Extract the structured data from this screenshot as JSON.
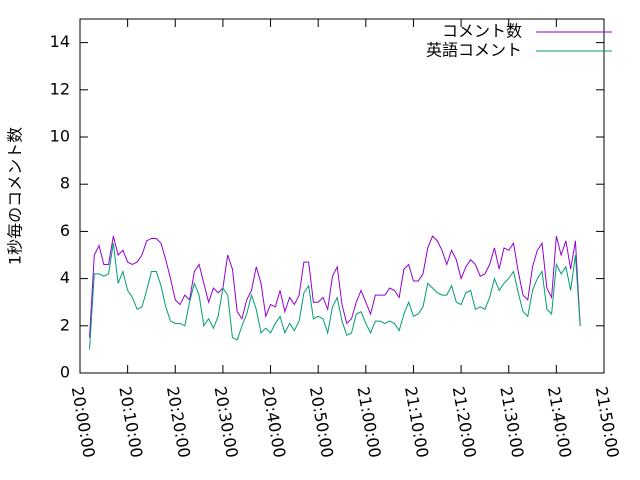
{
  "chart_data": {
    "type": "line",
    "ylabel": "1秒毎のコメント数",
    "x": [
      "20:02:00",
      "20:03:00",
      "20:04:00",
      "20:05:00",
      "20:06:00",
      "20:07:00",
      "20:08:00",
      "20:09:00",
      "20:10:00",
      "20:11:00",
      "20:12:00",
      "20:13:00",
      "20:14:00",
      "20:15:00",
      "20:16:00",
      "20:17:00",
      "20:18:00",
      "20:19:00",
      "20:20:00",
      "20:21:00",
      "20:22:00",
      "20:23:00",
      "20:24:00",
      "20:25:00",
      "20:26:00",
      "20:27:00",
      "20:28:00",
      "20:29:00",
      "20:30:00",
      "20:31:00",
      "20:32:00",
      "20:33:00",
      "20:34:00",
      "20:35:00",
      "20:36:00",
      "20:37:00",
      "20:38:00",
      "20:39:00",
      "20:40:00",
      "20:41:00",
      "20:42:00",
      "20:43:00",
      "20:44:00",
      "20:45:00",
      "20:46:00",
      "20:47:00",
      "20:48:00",
      "20:49:00",
      "20:50:00",
      "20:51:00",
      "20:52:00",
      "20:53:00",
      "20:54:00",
      "20:55:00",
      "20:56:00",
      "20:57:00",
      "20:58:00",
      "20:59:00",
      "21:00:00",
      "21:01:00",
      "21:02:00",
      "21:03:00",
      "21:04:00",
      "21:05:00",
      "21:06:00",
      "21:07:00",
      "21:08:00",
      "21:09:00",
      "21:10:00",
      "21:11:00",
      "21:12:00",
      "21:13:00",
      "21:14:00",
      "21:15:00",
      "21:16:00",
      "21:17:00",
      "21:18:00",
      "21:19:00",
      "21:20:00",
      "21:21:00",
      "21:22:00",
      "21:23:00",
      "21:24:00",
      "21:25:00",
      "21:26:00",
      "21:27:00",
      "21:28:00",
      "21:29:00",
      "21:30:00",
      "21:31:00",
      "21:32:00",
      "21:33:00",
      "21:34:00",
      "21:35:00",
      "21:36:00",
      "21:37:00",
      "21:38:00",
      "21:39:00",
      "21:40:00",
      "21:41:00",
      "21:42:00",
      "21:43:00",
      "21:44:00",
      "21:45:00"
    ],
    "series": [
      {
        "name": "コメント数",
        "color": "#9400d3",
        "values": [
          1.5,
          5.0,
          5.4,
          4.6,
          4.6,
          5.8,
          5.0,
          5.2,
          4.7,
          4.6,
          4.7,
          5.0,
          5.6,
          5.7,
          5.7,
          5.5,
          4.8,
          4.0,
          3.1,
          2.9,
          3.3,
          3.1,
          4.3,
          4.6,
          3.8,
          3.0,
          3.6,
          3.4,
          3.6,
          5.0,
          4.4,
          2.6,
          2.3,
          3.1,
          3.5,
          4.5,
          3.8,
          2.4,
          2.9,
          2.8,
          3.5,
          2.6,
          3.2,
          2.9,
          3.3,
          4.7,
          4.7,
          3.0,
          3.0,
          3.2,
          2.7,
          4.1,
          4.5,
          2.9,
          2.1,
          2.3,
          3.0,
          3.5,
          3.0,
          2.5,
          3.3,
          3.3,
          3.3,
          3.6,
          3.5,
          3.2,
          4.4,
          4.6,
          3.9,
          3.9,
          4.2,
          5.3,
          5.8,
          5.6,
          5.2,
          4.6,
          5.2,
          4.8,
          4.0,
          4.5,
          4.8,
          4.6,
          4.1,
          4.2,
          4.6,
          5.3,
          4.4,
          5.3,
          5.2,
          5.5,
          4.3,
          3.3,
          3.1,
          4.5,
          5.2,
          5.5,
          3.6,
          3.2,
          5.8,
          5.0,
          5.6,
          4.4,
          5.6,
          2.0
        ]
      },
      {
        "name": "英語コメント",
        "color": "#009e73",
        "values": [
          1.0,
          4.2,
          4.2,
          4.1,
          4.2,
          5.5,
          3.8,
          4.3,
          3.5,
          3.2,
          2.7,
          2.8,
          3.5,
          4.3,
          4.3,
          3.7,
          2.8,
          2.2,
          2.1,
          2.1,
          2.0,
          3.0,
          3.8,
          3.3,
          2.0,
          2.3,
          1.9,
          2.4,
          3.6,
          3.3,
          1.5,
          1.4,
          2.0,
          2.5,
          3.3,
          2.7,
          1.7,
          1.9,
          1.7,
          2.1,
          2.4,
          1.7,
          2.1,
          1.8,
          2.2,
          3.4,
          3.7,
          2.3,
          2.4,
          2.3,
          1.7,
          2.8,
          3.2,
          2.2,
          1.6,
          1.7,
          2.5,
          2.6,
          2.1,
          1.7,
          2.2,
          2.2,
          2.1,
          2.2,
          2.1,
          1.8,
          2.5,
          3.0,
          2.4,
          2.5,
          2.8,
          3.8,
          3.6,
          3.4,
          3.3,
          3.3,
          3.7,
          3.0,
          2.9,
          3.4,
          3.5,
          2.7,
          2.8,
          2.7,
          3.2,
          4.0,
          3.5,
          3.8,
          4.0,
          4.3,
          3.4,
          2.6,
          2.4,
          3.5,
          4.0,
          4.3,
          2.7,
          2.5,
          4.6,
          4.2,
          4.5,
          3.5,
          5.0,
          2.0
        ]
      }
    ],
    "xlim": [
      "20:00:00",
      "21:50:00"
    ],
    "xticks": [
      "20:00:00",
      "20:10:00",
      "20:20:00",
      "20:30:00",
      "20:40:00",
      "20:50:00",
      "21:00:00",
      "21:10:00",
      "21:20:00",
      "21:30:00",
      "21:40:00",
      "21:50:00"
    ],
    "ylim": [
      0,
      15
    ],
    "yticks": [
      0,
      2,
      4,
      6,
      8,
      10,
      12,
      14
    ],
    "legend": "top-right"
  }
}
